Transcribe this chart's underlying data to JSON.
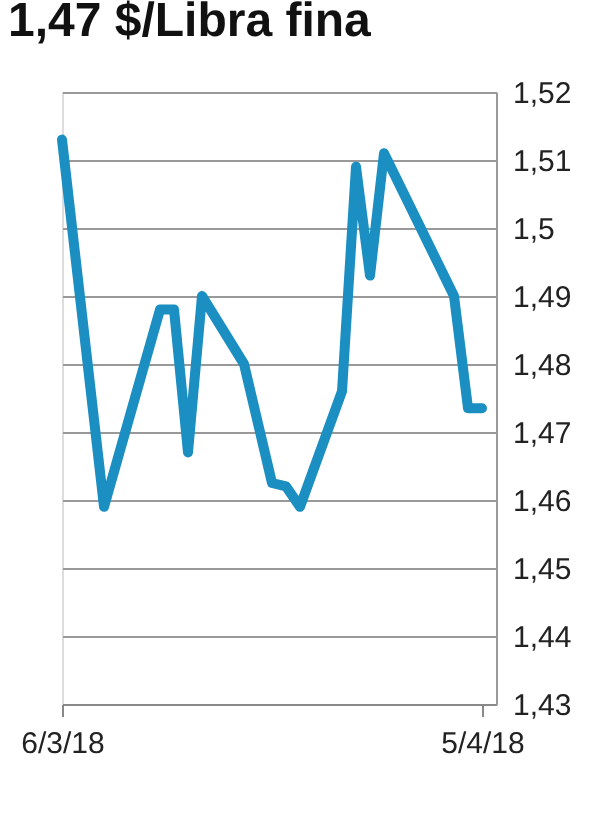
{
  "chart_data": {
    "type": "line",
    "title": "1,47 $/Libra fina",
    "x": [
      "2018-03-06",
      "2018-03-09",
      "2018-03-13",
      "2018-03-14",
      "2018-03-15",
      "2018-03-16",
      "2018-03-19",
      "2018-03-21",
      "2018-03-22",
      "2018-03-23",
      "2018-03-26",
      "2018-03-27",
      "2018-03-28",
      "2018-03-29",
      "2018-04-03",
      "2018-04-04",
      "2018-04-05"
    ],
    "series": [
      {
        "color": "#1b8ec2",
        "values": [
          1.513,
          1.459,
          1.488,
          1.488,
          1.467,
          1.49,
          1.48,
          1.4625,
          1.462,
          1.459,
          1.476,
          1.509,
          1.493,
          1.511,
          1.49,
          1.4735,
          1.4735
        ]
      }
    ],
    "xlim": [
      "2018-03-06",
      "2018-04-06"
    ],
    "xticks": [
      {
        "value": "2018-03-06",
        "label": "6/3/18"
      },
      {
        "value": "2018-04-05",
        "label": "5/4/18"
      }
    ],
    "ylim": [
      1.43,
      1.52
    ],
    "yticks": [
      {
        "value": 1.43,
        "label": "1,43"
      },
      {
        "value": 1.44,
        "label": "1,44"
      },
      {
        "value": 1.45,
        "label": "1,45"
      },
      {
        "value": 1.46,
        "label": "1,46"
      },
      {
        "value": 1.47,
        "label": "1,47"
      },
      {
        "value": 1.48,
        "label": "1,48"
      },
      {
        "value": 1.49,
        "label": "1,49"
      },
      {
        "value": 1.5,
        "label": "1,5"
      },
      {
        "value": 1.51,
        "label": "1,51"
      },
      {
        "value": 1.52,
        "label": "1,52"
      }
    ],
    "grid": "y",
    "legend": false,
    "marker": "none",
    "line_style": "solid"
  }
}
